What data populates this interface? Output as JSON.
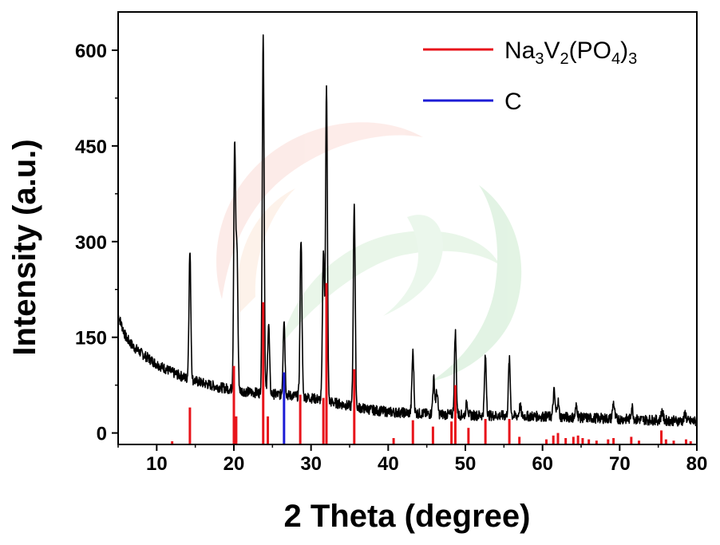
{
  "chart_data": {
    "type": "line",
    "xlabel": "2 Theta (degree)",
    "ylabel": "Intensity (a.u.)",
    "xlim": [
      5,
      80
    ],
    "ylim": [
      -18,
      660
    ],
    "x_ticks": [
      10,
      20,
      30,
      40,
      50,
      60,
      70,
      80
    ],
    "y_ticks": [
      0,
      150,
      300,
      450,
      600
    ],
    "x_tick_labels": [
      "10",
      "20",
      "30",
      "40",
      "50",
      "60",
      "70",
      "80"
    ],
    "y_tick_labels": [
      "0",
      "150",
      "300",
      "450",
      "600"
    ],
    "legend_position": "top-right",
    "series": [
      {
        "name": "Na3V2(PO4)3",
        "label_parts": [
          {
            "t": "Na"
          },
          {
            "t": "3",
            "sub": true
          },
          {
            "t": "V"
          },
          {
            "t": "2",
            "sub": true
          },
          {
            "t": "(PO"
          },
          {
            "t": "4",
            "sub": true
          },
          {
            "t": ")"
          },
          {
            "t": "3",
            "sub": true
          }
        ],
        "color": "#e8141b",
        "kind": "reference-sticks",
        "peaks": [
          [
            12.0,
            -16
          ],
          [
            14.3,
            40
          ],
          [
            20.0,
            105
          ],
          [
            20.3,
            26
          ],
          [
            23.8,
            205
          ],
          [
            24.4,
            26
          ],
          [
            28.6,
            60
          ],
          [
            31.6,
            55
          ],
          [
            32.0,
            235
          ],
          [
            35.6,
            100
          ],
          [
            40.7,
            -8
          ],
          [
            43.2,
            20
          ],
          [
            45.8,
            10
          ],
          [
            48.2,
            18
          ],
          [
            48.7,
            75
          ],
          [
            50.4,
            8
          ],
          [
            52.6,
            22
          ],
          [
            55.7,
            22
          ],
          [
            57.0,
            -6
          ],
          [
            60.5,
            -10
          ],
          [
            61.4,
            -4
          ],
          [
            62.0,
            0
          ],
          [
            63.0,
            -8
          ],
          [
            64.0,
            -6
          ],
          [
            64.6,
            -4
          ],
          [
            65.2,
            -8
          ],
          [
            66.0,
            -10
          ],
          [
            67.0,
            -12
          ],
          [
            68.5,
            -10
          ],
          [
            69.2,
            -8
          ],
          [
            71.5,
            -6
          ],
          [
            72.5,
            -12
          ],
          [
            75.4,
            4
          ],
          [
            76.0,
            -10
          ],
          [
            77.0,
            -12
          ],
          [
            78.6,
            -10
          ],
          [
            79.2,
            -14
          ]
        ]
      },
      {
        "name": "C",
        "label_parts": [
          {
            "t": "C"
          }
        ],
        "color": "#1d1dd6",
        "kind": "reference-sticks",
        "peaks": [
          [
            26.5,
            95
          ]
        ]
      },
      {
        "name": "",
        "color": "#000000",
        "kind": "pattern",
        "background": [
          [
            5,
            185
          ],
          [
            6,
            150
          ],
          [
            7,
            135
          ],
          [
            8,
            125
          ],
          [
            10,
            108
          ],
          [
            12,
            95
          ],
          [
            14,
            85
          ],
          [
            16,
            78
          ],
          [
            18,
            72
          ],
          [
            20,
            68
          ],
          [
            22,
            64
          ],
          [
            24,
            62
          ],
          [
            26,
            60
          ],
          [
            28,
            58
          ],
          [
            30,
            55
          ],
          [
            32,
            50
          ],
          [
            34,
            45
          ],
          [
            36,
            40
          ],
          [
            38,
            36
          ],
          [
            40,
            33
          ],
          [
            45,
            30
          ],
          [
            50,
            28
          ],
          [
            55,
            27
          ],
          [
            60,
            26
          ],
          [
            65,
            24
          ],
          [
            70,
            22
          ],
          [
            75,
            20
          ],
          [
            80,
            18
          ]
        ],
        "peaks": [
          [
            14.3,
            200
          ],
          [
            20.1,
            380
          ],
          [
            20.4,
            215
          ],
          [
            23.8,
            560
          ],
          [
            24.5,
            110
          ],
          [
            26.5,
            120
          ],
          [
            28.7,
            250
          ],
          [
            31.6,
            235
          ],
          [
            32.0,
            490
          ],
          [
            35.6,
            320
          ],
          [
            43.2,
            95
          ],
          [
            45.9,
            55
          ],
          [
            46.3,
            35
          ],
          [
            48.7,
            130
          ],
          [
            50.2,
            20
          ],
          [
            52.6,
            92
          ],
          [
            55.7,
            88
          ],
          [
            57.1,
            15
          ],
          [
            61.5,
            40
          ],
          [
            62.0,
            25
          ],
          [
            64.4,
            18
          ],
          [
            69.2,
            25
          ],
          [
            71.6,
            20
          ],
          [
            75.5,
            15
          ],
          [
            78.5,
            12
          ]
        ]
      }
    ]
  }
}
